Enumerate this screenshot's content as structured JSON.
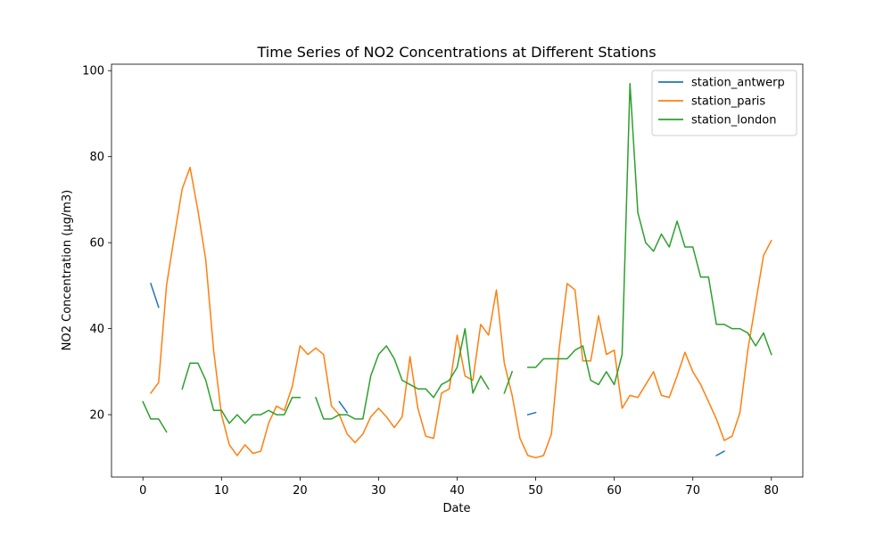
{
  "chart_data": {
    "type": "line",
    "title": "Time Series of NO2 Concentrations at Different Stations",
    "xlabel": "Date",
    "ylabel": "NO2 Concentration (µg/m3)",
    "xlim": [
      -4,
      84
    ],
    "ylim": [
      5.5,
      101.5
    ],
    "x_ticks": [
      0,
      10,
      20,
      30,
      40,
      50,
      60,
      70,
      80
    ],
    "y_ticks": [
      20,
      40,
      60,
      80,
      100
    ],
    "grid": false,
    "legend_position": "top-right",
    "series": [
      {
        "name": "station_antwerp",
        "color": "#1f77b4",
        "values": [
          null,
          50.5,
          45,
          null,
          null,
          null,
          null,
          null,
          null,
          null,
          null,
          null,
          null,
          null,
          null,
          null,
          null,
          null,
          null,
          null,
          null,
          null,
          null,
          null,
          null,
          23,
          20.5,
          null,
          null,
          null,
          null,
          null,
          null,
          null,
          null,
          null,
          null,
          null,
          null,
          null,
          null,
          null,
          null,
          null,
          null,
          null,
          null,
          null,
          null,
          20,
          20.5,
          null,
          null,
          null,
          null,
          null,
          null,
          null,
          null,
          null,
          null,
          null,
          null,
          null,
          null,
          null,
          null,
          null,
          null,
          null,
          null,
          null,
          null,
          10.5,
          11.5,
          null,
          null,
          null,
          null,
          null,
          null
        ]
      },
      {
        "name": "station_paris",
        "color": "#ff7f0e",
        "values": [
          null,
          25,
          27.5,
          50,
          61.5,
          72.5,
          77.5,
          67.5,
          56,
          35,
          20,
          13,
          10.5,
          13,
          11,
          11.5,
          18,
          22,
          21,
          26.5,
          36,
          34,
          35.5,
          34,
          22,
          20,
          15.5,
          13.5,
          15.5,
          19.5,
          21.5,
          19.5,
          17,
          19.5,
          33.5,
          21.5,
          15,
          14.5,
          25,
          26,
          38.5,
          29,
          28,
          41,
          38.5,
          49,
          32,
          24.5,
          14.5,
          10.5,
          10,
          10.5,
          15.5,
          35.5,
          50.5,
          49,
          32.5,
          32.5,
          43,
          34,
          35,
          21.5,
          24.5,
          24,
          27,
          30,
          24.5,
          24,
          29,
          34.5,
          30,
          27,
          23,
          19,
          14,
          15,
          20.5,
          35,
          46,
          57,
          60.5
        ]
      },
      {
        "name": "station_london",
        "color": "#2ca02c",
        "values": [
          23,
          19,
          19,
          16,
          null,
          26,
          32,
          32,
          28,
          21,
          21,
          18,
          20,
          18,
          20,
          20,
          21,
          20,
          20,
          24,
          24,
          null,
          24,
          19,
          19,
          20,
          20,
          19,
          19,
          29,
          34,
          36,
          33,
          28,
          27,
          26,
          26,
          24,
          27,
          28,
          31,
          40,
          25,
          29,
          26,
          null,
          25,
          30,
          null,
          31,
          31,
          33,
          33,
          33,
          33,
          35,
          36,
          28,
          27,
          30,
          27,
          34,
          97,
          67,
          60,
          58,
          62,
          59,
          65,
          59,
          59,
          52,
          52,
          41,
          41,
          40,
          40,
          39,
          36,
          39,
          34
        ]
      }
    ]
  }
}
